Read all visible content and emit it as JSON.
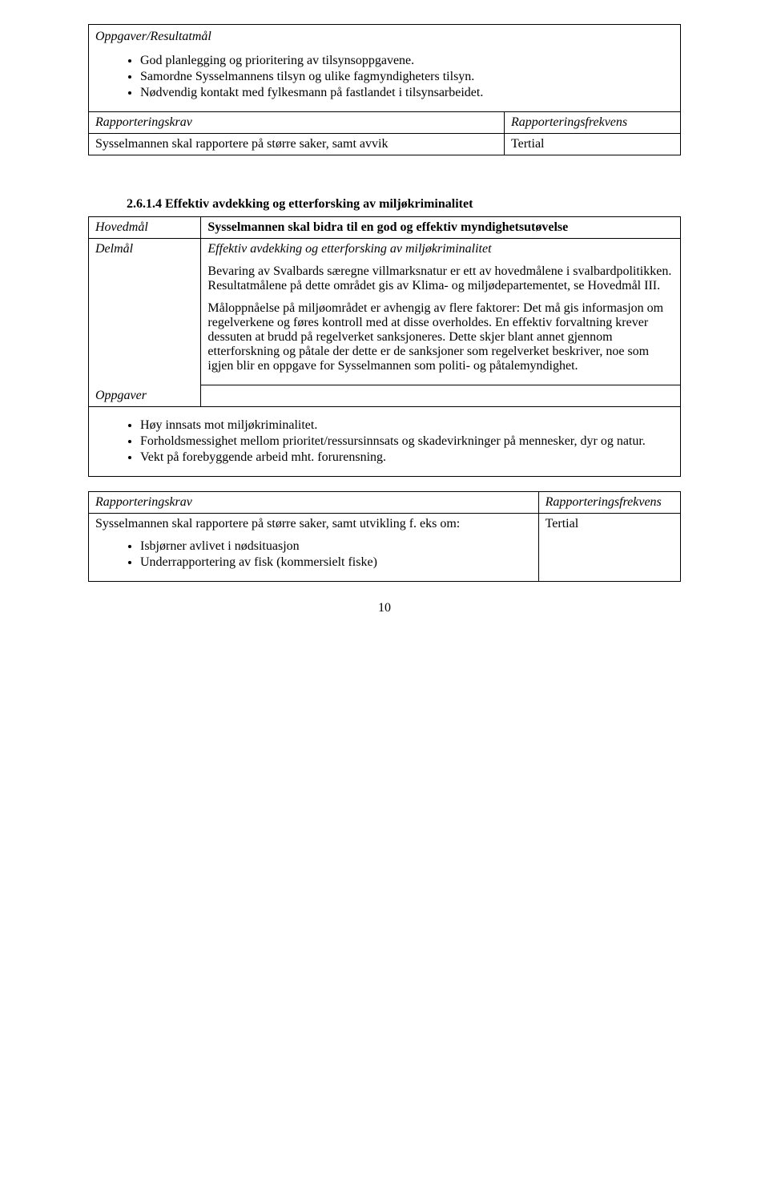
{
  "block1": {
    "title": "Oppgaver/Resultatmål",
    "bullets": [
      "God planlegging og prioritering av tilsynsoppgavene.",
      "Samordne Sysselmannens tilsyn og ulike fagmyndigheters tilsyn.",
      "Nødvendig kontakt med fylkesmann på fastlandet i tilsynsarbeidet."
    ],
    "rap_label": "Rapporteringskrav",
    "freq_label": "Rapporteringsfrekvens",
    "rap_text": "Sysselmannen skal rapportere på større saker, samt avvik",
    "freq_value": "Tertial"
  },
  "block2": {
    "heading": "2.6.1.4  Effektiv avdekking og etterforsking av miljøkriminalitet",
    "rows": {
      "hovedmal_label": "Hovedmål",
      "hovedmal_text": "Sysselmannen skal bidra til en god og effektiv myndighetsutøvelse",
      "delmal_label": "Delmål",
      "delmal_text": "Effektiv avdekking og etterforsking av miljøkriminalitet",
      "para1": "Bevaring av Svalbards særegne villmarksnatur er ett av hovedmålene i svalbardpolitikken. Resultatmålene på dette området gis av Klima- og miljødepartementet, se Hovedmål III.",
      "para2": "Måloppnåelse på miljøområdet er avhengig av flere faktorer: Det må gis informasjon om regelverkene og føres kontroll med at disse overholdes. En effektiv forvaltning krever dessuten at brudd på regelverket sanksjoneres. Dette skjer blant annet gjennom etterforskning og påtale der dette er de sanksjoner som regelverket beskriver, noe som igjen blir en oppgave for Sysselmannen som politi- og påtalemyndighet.",
      "oppgaver_label": "Oppgaver"
    },
    "bullets": [
      "Høy innsats mot miljøkriminalitet.",
      "Forholdsmessighet mellom prioritet/ressursinnsats og skadevirkninger på mennesker, dyr og natur.",
      "Vekt på forebyggende arbeid mht. forurensning."
    ],
    "rap_label": "Rapporteringskrav",
    "freq_label": "Rapporteringsfrekvens",
    "rap_text": "Sysselmannen skal rapportere på større saker, samt utvikling f. eks om:",
    "rap_bullets": [
      "Isbjørner avlivet i nødsituasjon",
      "Underrapportering av fisk (kommersielt fiske)"
    ],
    "freq_value": "Tertial"
  },
  "page_number": "10"
}
